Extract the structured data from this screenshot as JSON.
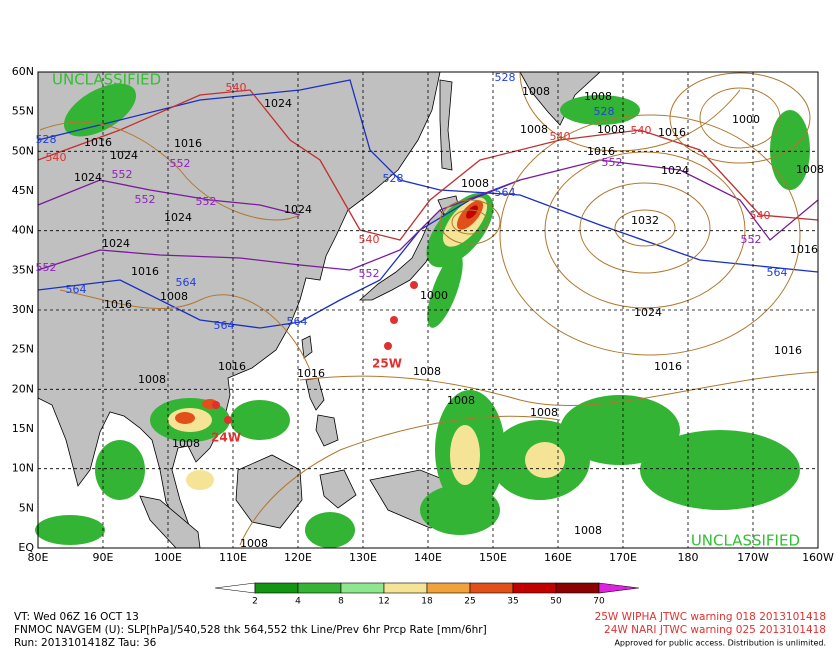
{
  "map": {
    "lat_labels": [
      "60N",
      "55N",
      "50N",
      "45N",
      "40N",
      "35N",
      "30N",
      "25N",
      "20N",
      "15N",
      "10N",
      "5N",
      "EQ"
    ],
    "lon_labels": [
      "80E",
      "90E",
      "100E",
      "110E",
      "120E",
      "130E",
      "140E",
      "150E",
      "160E",
      "170E",
      "180",
      "170W",
      "160W"
    ],
    "watermarks": [
      "UNCLASSIFIED",
      "UNCLASSIFIED"
    ],
    "contour_labels": [
      "540",
      "1024",
      "528",
      "1016",
      "540",
      "1024",
      "552",
      "552",
      "1024",
      "1016",
      "552",
      "552",
      "1024",
      "1024",
      "1024",
      "552",
      "1016",
      "564",
      "1008",
      "564",
      "1016",
      "564",
      "564",
      "1016",
      "1008",
      "1016",
      "1008",
      "1008",
      "528",
      "1008",
      "528",
      "1008",
      "540",
      "1008",
      "540",
      "1016",
      "1000",
      "1016",
      "552",
      "1024",
      "528",
      "1008",
      "564",
      "1032",
      "540",
      "552",
      "1016",
      "564",
      "540",
      "552",
      "1000",
      "1024",
      "1016",
      "1016",
      "1008",
      "1008",
      "1008",
      "1008",
      "1008",
      "1008"
    ],
    "storm_labels": [
      "25W",
      "24W"
    ]
  },
  "colorbar": {
    "ticks": [
      2,
      4,
      8,
      12,
      18,
      25,
      35,
      50,
      70
    ],
    "colors": [
      "#129612",
      "#34b434",
      "#8ee68e",
      "#f6e496",
      "#f2a23a",
      "#e2501a",
      "#c20000",
      "#8c0000"
    ],
    "over_color": "#e020e0"
  },
  "footer": {
    "left": [
      "VT: Wed 06Z 16 OCT 13",
      "FNMOC NAVGEM (U): SLP[hPa]/540,528 thk 564,552 thk Line/Prev 6hr Prcp Rate [mm/6hr]",
      "Run: 2013101418Z Tau: 36"
    ],
    "right": [
      "25W WIPHA JTWC warning 018 2013101418",
      "24W NARI JTWC warning 025 2013101418",
      "Approved for public access. Distribution is unlimited."
    ]
  }
}
